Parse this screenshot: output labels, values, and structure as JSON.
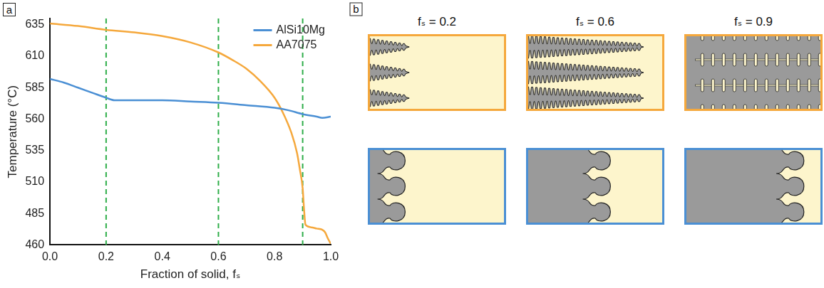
{
  "panel_labels": [
    "a",
    "b"
  ],
  "chart_data": {
    "type": "line",
    "x_label": "Fraction of solid, fₛ",
    "y_label": "Temperature (°C)",
    "xlim": [
      0,
      1
    ],
    "xticks": [
      {
        "value": 0,
        "label": "0.0"
      },
      0.2,
      0.4,
      0.6,
      0.8,
      {
        "value": 1,
        "label": "1.0"
      }
    ],
    "ylim": [
      460,
      640
    ],
    "yticks": [
      460,
      485,
      510,
      535,
      560,
      585,
      610,
      635
    ],
    "grid": false,
    "legend": "upper right",
    "vlines": [
      0.2,
      0.6,
      0.9
    ],
    "series": [
      {
        "name": "AlSi10Mg",
        "color": "#4a8fd4",
        "x": [
          0,
          0.05,
          0.1,
          0.15,
          0.2,
          0.23,
          0.3,
          0.4,
          0.5,
          0.6,
          0.7,
          0.8,
          0.85,
          0.9,
          0.95,
          0.97,
          1.0
        ],
        "values": [
          592,
          589,
          585,
          581,
          577,
          575,
          575,
          575,
          574,
          573,
          571,
          569,
          567,
          564,
          562,
          561,
          562
        ]
      },
      {
        "name": "AA7075",
        "color": "#f5a83c",
        "x": [
          0,
          0.1,
          0.2,
          0.3,
          0.4,
          0.5,
          0.6,
          0.65,
          0.7,
          0.75,
          0.8,
          0.83,
          0.86,
          0.88,
          0.89,
          0.9,
          0.905,
          0.91,
          0.93,
          0.95,
          0.97,
          0.98,
          0.99,
          1.0
        ],
        "values": [
          636,
          634,
          631,
          629,
          626,
          621,
          613,
          607,
          600,
          590,
          577,
          565,
          549,
          533,
          520,
          505,
          488,
          476,
          474,
          473,
          472,
          470,
          465,
          461
        ]
      }
    ]
  },
  "schematic": {
    "labels": [
      "fₛ = 0.2",
      "fₛ = 0.6",
      "fₛ = 0.9"
    ]
  }
}
